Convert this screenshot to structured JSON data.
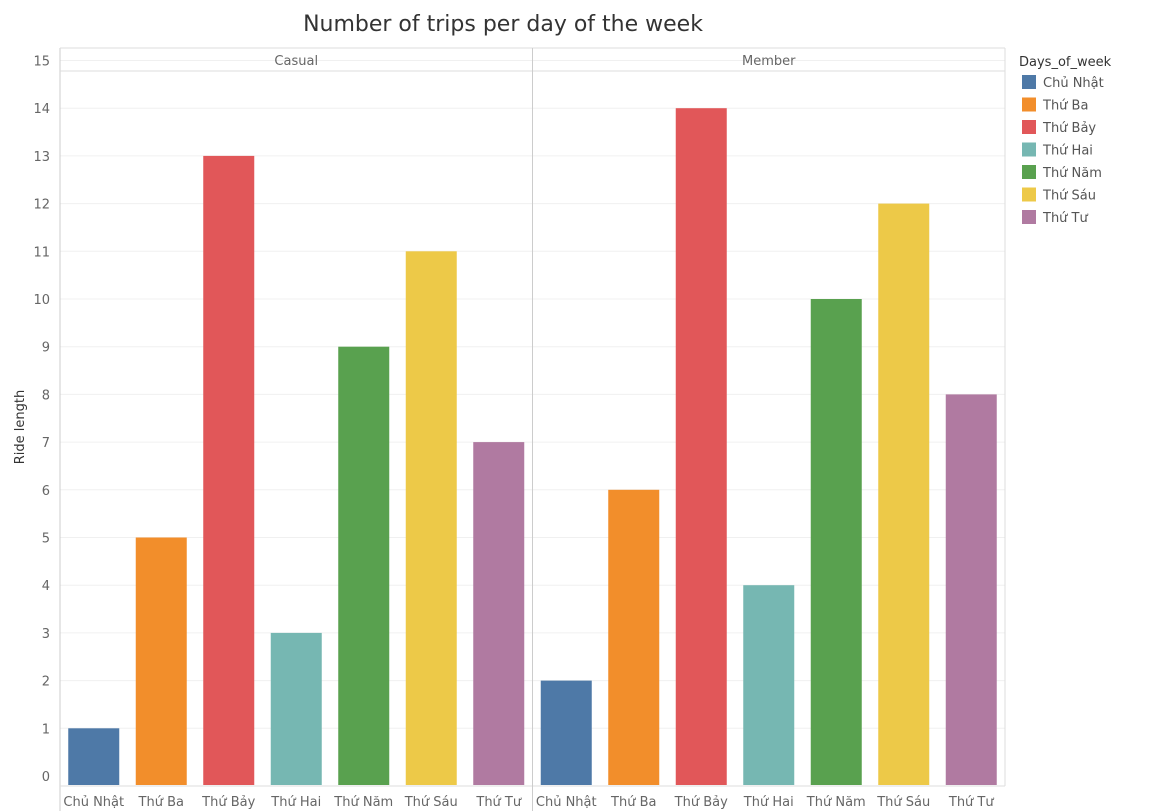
{
  "chart_data": {
    "type": "bar",
    "title": "Number of trips per day of the week",
    "ylabel": "Ride length",
    "xlabel": "",
    "ylim": [
      0,
      15
    ],
    "yticks": [
      0,
      1,
      2,
      3,
      4,
      5,
      6,
      7,
      8,
      9,
      10,
      11,
      12,
      13,
      14,
      15
    ],
    "grid": true,
    "categories": [
      "Chủ Nhật",
      "Thứ Ba",
      "Thứ Bảy",
      "Thứ Hai",
      "Thứ Năm",
      "Thứ Sáu",
      "Thứ Tư"
    ],
    "panels": [
      {
        "name": "Casual",
        "values": [
          1,
          5,
          13,
          3,
          9,
          11,
          7
        ]
      },
      {
        "name": "Member",
        "values": [
          2,
          6,
          14,
          4,
          10,
          12,
          8
        ]
      }
    ],
    "legend": {
      "title": "Days_of_week",
      "position": "right",
      "entries": [
        {
          "label": "Chủ Nhật",
          "color": "#4e79a7"
        },
        {
          "label": "Thứ Ba",
          "color": "#f28e2b"
        },
        {
          "label": "Thứ Bảy",
          "color": "#e15759"
        },
        {
          "label": "Thứ Hai",
          "color": "#76b7b2"
        },
        {
          "label": "Thứ Năm",
          "color": "#59a14f"
        },
        {
          "label": "Thứ Sáu",
          "color": "#edc948"
        },
        {
          "label": "Thứ Tư",
          "color": "#b07aa1"
        }
      ]
    }
  }
}
